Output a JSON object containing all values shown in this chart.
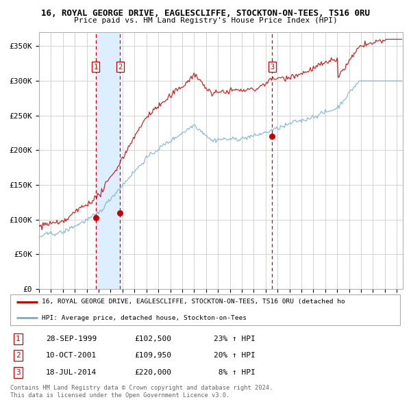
{
  "title1": "16, ROYAL GEORGE DRIVE, EAGLESCLIFFE, STOCKTON-ON-TEES, TS16 0RU",
  "title2": "Price paid vs. HM Land Registry's House Price Index (HPI)",
  "xlim_start": 1995.0,
  "xlim_end": 2025.5,
  "ylim": [
    0,
    370000
  ],
  "yticks": [
    0,
    50000,
    100000,
    150000,
    200000,
    250000,
    300000,
    350000
  ],
  "ytick_labels": [
    "£0",
    "£50K",
    "£100K",
    "£150K",
    "£200K",
    "£250K",
    "£300K",
    "£350K"
  ],
  "sale1_date": 1999.74,
  "sale1_price": 102500,
  "sale2_date": 2001.79,
  "sale2_price": 109950,
  "sale3_date": 2014.54,
  "sale3_price": 220000,
  "red_line_color": "#cc0000",
  "blue_line_color": "#7ab0d4",
  "shade_color": "#ddeeff",
  "grid_color": "#cccccc",
  "bg_color": "#ffffff",
  "legend_label_red": "16, ROYAL GEORGE DRIVE, EAGLESCLIFFE, STOCKTON-ON-TEES, TS16 0RU (detached ho",
  "legend_label_blue": "HPI: Average price, detached house, Stockton-on-Tees",
  "table_rows": [
    [
      "1",
      "28-SEP-1999",
      "£102,500",
      "23% ↑ HPI"
    ],
    [
      "2",
      "10-OCT-2001",
      "£109,950",
      "20% ↑ HPI"
    ],
    [
      "3",
      "18-JUL-2014",
      "£220,000",
      " 8% ↑ HPI"
    ]
  ],
  "footer1": "Contains HM Land Registry data © Crown copyright and database right 2024.",
  "footer2": "This data is licensed under the Open Government Licence v3.0."
}
